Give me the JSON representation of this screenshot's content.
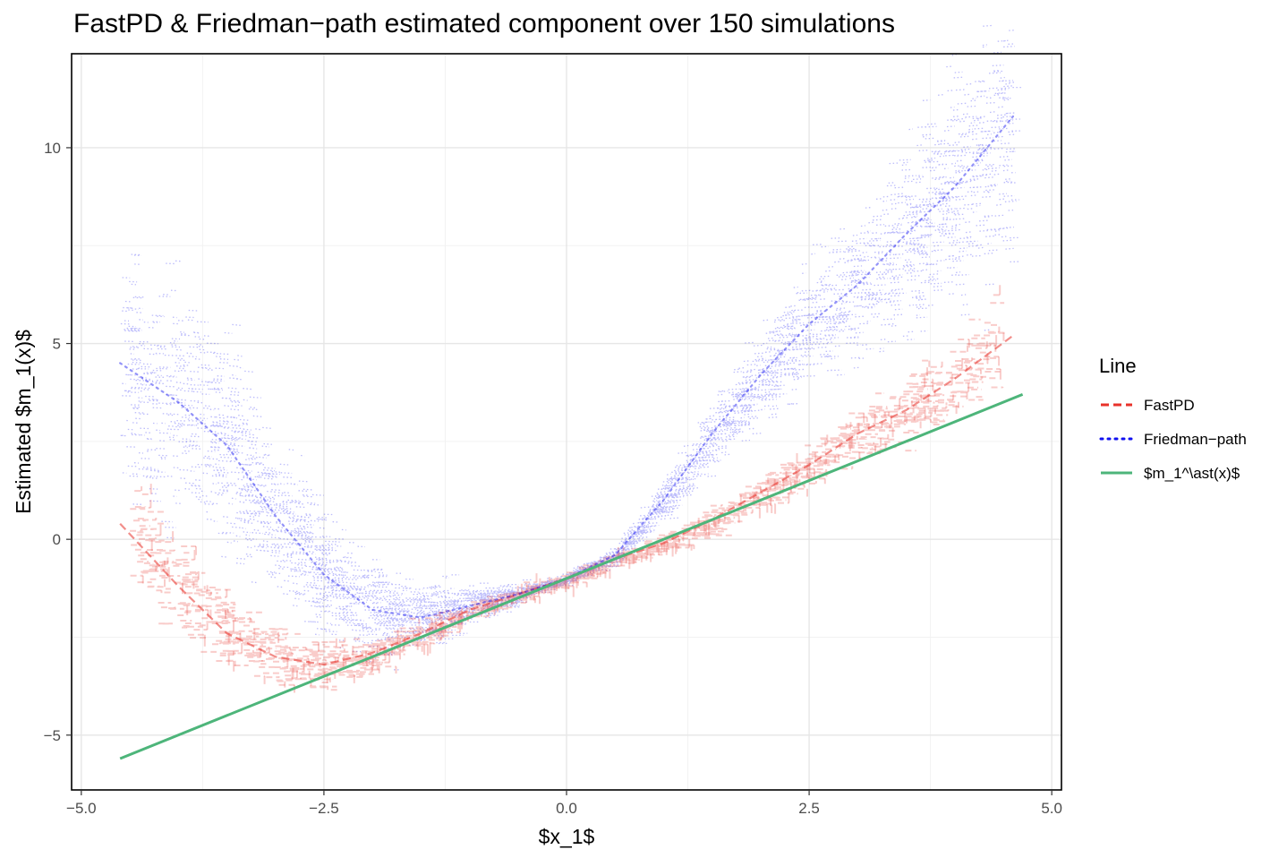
{
  "chart_data": {
    "type": "line",
    "title": "FastPD & Friedman−path estimated component over 150 simulations",
    "xlabel": "$x_1$",
    "ylabel": "Estimated $m_1(x)$",
    "xlim": [
      -5.1,
      5.1
    ],
    "ylim": [
      -6.4,
      12.4
    ],
    "x_ticks": [
      {
        "value": -5.0,
        "label": "−5.0"
      },
      {
        "value": -2.5,
        "label": "−2.5"
      },
      {
        "value": 0.0,
        "label": "0.0"
      },
      {
        "value": 2.5,
        "label": "2.5"
      },
      {
        "value": 5.0,
        "label": "5.0"
      }
    ],
    "y_ticks": [
      {
        "value": -5,
        "label": "−5"
      },
      {
        "value": 0,
        "label": "0"
      },
      {
        "value": 5,
        "label": "5"
      },
      {
        "value": 10,
        "label": "10"
      }
    ],
    "grid": true,
    "n_simulations": 150,
    "legend": {
      "title": "Line",
      "position": "right",
      "entries": [
        {
          "label": "FastPD",
          "color": "#e8322a",
          "style": "dashed"
        },
        {
          "label": "Friedman−path",
          "color": "#1010f0",
          "style": "dotted"
        },
        {
          "label": "$m_1^\\ast(x)$",
          "color": "#4db57a",
          "style": "solid"
        }
      ]
    },
    "series": [
      {
        "name": "FastPD",
        "color": "#e8322a",
        "style": "dashed",
        "x": [
          -4.6,
          -4.0,
          -3.5,
          -3.0,
          -2.5,
          -2.0,
          -1.5,
          -1.0,
          -0.5,
          0.0,
          0.5,
          1.0,
          1.5,
          2.0,
          2.5,
          3.0,
          3.5,
          4.0,
          4.6
        ],
        "y": [
          0.4,
          -1.2,
          -2.4,
          -3.0,
          -3.2,
          -2.9,
          -2.4,
          -1.8,
          -1.4,
          -1.0,
          -0.5,
          -0.1,
          0.5,
          1.2,
          1.9,
          2.7,
          3.3,
          4.1,
          5.2
        ]
      },
      {
        "name": "Friedman−path",
        "color": "#1010f0",
        "style": "dotted",
        "x": [
          -4.6,
          -4.0,
          -3.5,
          -3.0,
          -2.5,
          -2.0,
          -1.5,
          -1.0,
          -0.5,
          0.0,
          0.5,
          1.0,
          1.5,
          2.0,
          2.5,
          3.0,
          3.5,
          4.0,
          4.6
        ],
        "y": [
          4.5,
          3.5,
          2.4,
          0.6,
          -0.9,
          -1.8,
          -2.0,
          -1.7,
          -1.4,
          -1.0,
          -0.4,
          1.0,
          2.7,
          4.2,
          5.5,
          6.5,
          7.8,
          9.0,
          10.8
        ]
      },
      {
        "name": "$m_1^\\ast(x)$",
        "color": "#4db57a",
        "style": "solid",
        "x": [
          -4.6,
          4.7
        ],
        "y": [
          -5.6,
          3.7
        ]
      }
    ]
  }
}
